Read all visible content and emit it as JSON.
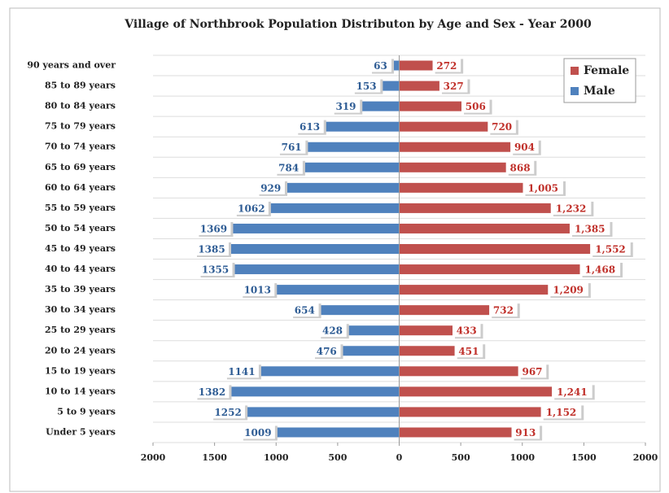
{
  "chart_data": {
    "type": "pyramid",
    "title": "Village of Northbrook Population Distributon by Age and Sex - Year 2000",
    "categories": [
      "90 years and over",
      "85 to 89 years",
      "80 to 84 years",
      "75 to 79 years",
      "70 to 74 years",
      "65 to 69 years",
      "60 to 64 years",
      "55 to 59 years",
      "50 to 54 years",
      "45 to 49 years",
      "40 to 44 years",
      "35 to 39 years",
      "30 to 34 years",
      "25 to 29 years",
      "20 to 24 years",
      "15 to 19 years",
      "10 to 14 years",
      "5 to 9 years",
      "Under 5 years"
    ],
    "series": [
      {
        "name": "Female",
        "color": "#c0504d",
        "values": [
          272,
          327,
          506,
          720,
          904,
          868,
          1005,
          1232,
          1385,
          1552,
          1468,
          1209,
          732,
          433,
          451,
          967,
          1241,
          1152,
          913
        ],
        "value_labels": [
          "272",
          "327",
          "506",
          "720",
          "904",
          "868",
          "1,005",
          "1,232",
          "1,385",
          "1,552",
          "1,468",
          "1,209",
          "732",
          "433",
          "451",
          "967",
          "1,241",
          "1,152",
          "913"
        ]
      },
      {
        "name": "Male",
        "color": "#4f81bd",
        "values": [
          -63,
          -153,
          -319,
          -613,
          -761,
          -784,
          -929,
          -1062,
          -1369,
          -1385,
          -1355,
          -1013,
          -654,
          -428,
          -476,
          -1141,
          -1382,
          -1252,
          -1009
        ],
        "value_labels": [
          "63",
          "153",
          "319",
          "613",
          "761",
          "784",
          "929",
          "1062",
          "1369",
          "1385",
          "1355",
          "1013",
          "654",
          "428",
          "476",
          "1141",
          "1382",
          "1252",
          "1009"
        ]
      }
    ],
    "xlim": [
      -2000,
      2000
    ],
    "xticks": [
      {
        "value": -2000,
        "label": "2000"
      },
      {
        "value": -1500,
        "label": "1500"
      },
      {
        "value": -1000,
        "label": "1000"
      },
      {
        "value": -500,
        "label": "500"
      },
      0,
      500,
      1000,
      1500,
      2000
    ],
    "legend": "upper right"
  }
}
